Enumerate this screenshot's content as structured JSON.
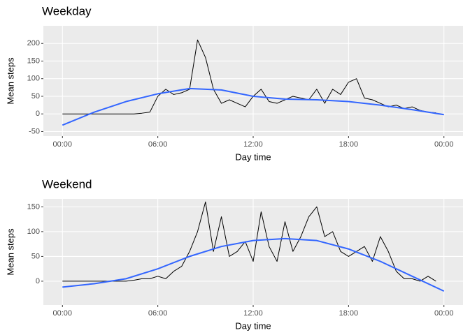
{
  "chart_data": [
    {
      "type": "line",
      "title": "Weekday",
      "xlabel": "Day time",
      "ylabel": "Mean steps",
      "grid": true,
      "xlim": [
        -1.2,
        25.2
      ],
      "ylim": [
        -63,
        250
      ],
      "xticks": [
        {
          "value": 0,
          "label": "00:00"
        },
        {
          "value": 6,
          "label": "06:00"
        },
        {
          "value": 12,
          "label": "12:00"
        },
        {
          "value": 18,
          "label": "18:00"
        },
        {
          "value": 24,
          "label": "00:00"
        }
      ],
      "yticks": [
        -50,
        0,
        50,
        100,
        150,
        200
      ],
      "series": [
        {
          "color": "#000000",
          "x": [
            0,
            0.5,
            1,
            1.5,
            2,
            2.5,
            3,
            3.5,
            4,
            4.5,
            5,
            5.5,
            6,
            6.5,
            7,
            7.5,
            8,
            8.5,
            9,
            9.5,
            10,
            10.5,
            11,
            11.5,
            12,
            12.5,
            13,
            13.5,
            14,
            14.5,
            15,
            15.5,
            16,
            16.5,
            17,
            17.5,
            18,
            18.5,
            19,
            19.5,
            20,
            20.5,
            21,
            21.5,
            22,
            22.5,
            23,
            23.5
          ],
          "values": [
            0,
            0,
            0,
            0,
            0,
            0,
            0,
            0,
            0,
            0,
            2,
            5,
            50,
            70,
            55,
            60,
            70,
            210,
            160,
            70,
            30,
            40,
            30,
            20,
            50,
            70,
            35,
            30,
            40,
            50,
            45,
            40,
            70,
            30,
            70,
            55,
            90,
            100,
            45,
            40,
            30,
            20,
            25,
            15,
            20,
            10,
            5,
            3
          ]
        },
        {
          "color": "#3366ff",
          "x": [
            0,
            2,
            4,
            6,
            8,
            10,
            12,
            14,
            16,
            18,
            20,
            22,
            24
          ],
          "values": [
            -32,
            5,
            35,
            57,
            72,
            68,
            50,
            42,
            40,
            35,
            25,
            12,
            -2
          ]
        }
      ]
    },
    {
      "type": "line",
      "title": "Weekend",
      "xlabel": "Day time",
      "ylabel": "Mean steps",
      "grid": true,
      "xlim": [
        -1.2,
        25.2
      ],
      "ylim": [
        -48,
        166
      ],
      "xticks": [
        {
          "value": 0,
          "label": "00:00"
        },
        {
          "value": 6,
          "label": "06:00"
        },
        {
          "value": 12,
          "label": "12:00"
        },
        {
          "value": 18,
          "label": "18:00"
        },
        {
          "value": 24,
          "label": "00:00"
        }
      ],
      "yticks": [
        0,
        50,
        100,
        150
      ],
      "series": [
        {
          "color": "#000000",
          "x": [
            0,
            0.5,
            1,
            1.5,
            2,
            2.5,
            3,
            3.5,
            4,
            4.5,
            5,
            5.5,
            6,
            6.5,
            7,
            7.5,
            8,
            8.5,
            9,
            9.5,
            10,
            10.5,
            11,
            11.5,
            12,
            12.5,
            13,
            13.5,
            14,
            14.5,
            15,
            15.5,
            16,
            16.5,
            17,
            17.5,
            18,
            18.5,
            19,
            19.5,
            20,
            20.5,
            21,
            21.5,
            22,
            22.5,
            23,
            23.5
          ],
          "values": [
            0,
            0,
            0,
            0,
            0,
            0,
            0,
            0,
            0,
            2,
            5,
            5,
            10,
            5,
            20,
            30,
            60,
            100,
            160,
            60,
            130,
            50,
            60,
            80,
            40,
            140,
            70,
            40,
            120,
            60,
            90,
            130,
            150,
            90,
            100,
            60,
            50,
            60,
            70,
            40,
            90,
            60,
            20,
            5,
            5,
            0,
            10,
            0
          ]
        },
        {
          "color": "#3366ff",
          "x": [
            0,
            2,
            4,
            6,
            8,
            10,
            12,
            14,
            16,
            18,
            20,
            22,
            24
          ],
          "values": [
            -12,
            -5,
            5,
            25,
            50,
            70,
            82,
            86,
            82,
            65,
            40,
            10,
            -20
          ]
        }
      ]
    }
  ]
}
